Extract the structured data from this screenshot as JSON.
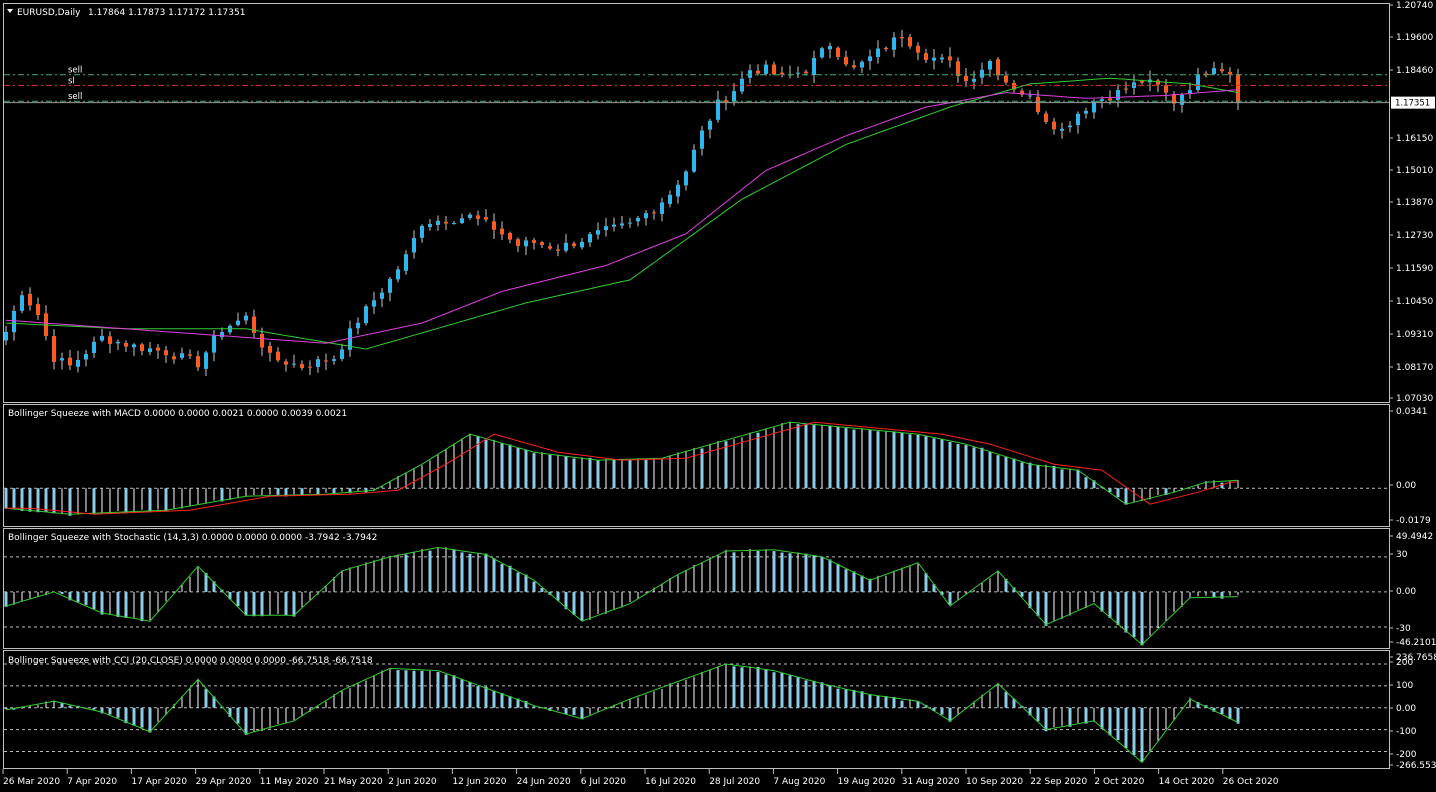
{
  "header": {
    "symbol_label": "EURUSD,Daily",
    "ohlc": "1.17864 1.17873 1.17172 1.17351"
  },
  "colors": {
    "background": "#000000",
    "bull": "#2fb5f0",
    "bear": "#ff5a1f",
    "ma_fast": "#e040e0",
    "ma_slow": "#33cc33",
    "level_sell": "#3cb371",
    "level_sl": "#e03030",
    "histogram": "#87ceeb",
    "signal_red": "#ff2020",
    "signal_green": "#33cc33"
  },
  "levels": [
    {
      "label": "sell",
      "price": 1.1832,
      "color": "#3cb371"
    },
    {
      "label": "sl",
      "price": 1.1795,
      "color": "#e03030"
    },
    {
      "label": "sell",
      "price": 1.174,
      "color": "#3cb371"
    }
  ],
  "price_axis": {
    "ticks": [
      "1.20740",
      "1.19600",
      "1.18460",
      "1.17351",
      "1.16150",
      "1.15010",
      "1.13870",
      "1.12730",
      "1.11590",
      "1.10450",
      "1.09310",
      "1.08170",
      "1.07030"
    ],
    "current_price": "1.17351"
  },
  "time_axis": {
    "labels": [
      "26 Mar 2020",
      "7 Apr 2020",
      "17 Apr 2020",
      "29 Apr 2020",
      "11 May 2020",
      "21 May 2020",
      "2 Jun 2020",
      "12 Jun 2020",
      "24 Jun 2020",
      "6 Jul 2020",
      "16 Jul 2020",
      "28 Jul 2020",
      "7 Aug 2020",
      "19 Aug 2020",
      "31 Aug 2020",
      "10 Sep 2020",
      "22 Sep 2020",
      "2 Oct 2020",
      "14 Oct 2020",
      "26 Oct 2020"
    ]
  },
  "indicators": [
    {
      "key": "macd",
      "title": "Bollinger Squeeze with MACD 0.0000 0.0000 0.0021 0.0000 0.0039 0.0021",
      "axis_labels": [
        "0.0341",
        "0.00",
        "-0.0179"
      ]
    },
    {
      "key": "stoch",
      "title": "Bollinger Squeeze with Stochastic (14,3,3) 0.0000 0.0000 0.0000 -3.7942 -3.7942",
      "axis_labels": [
        "49.4942",
        "30",
        "0.00",
        "-30",
        "-46.2101"
      ]
    },
    {
      "key": "cci",
      "title": "Bollinger Squeeze with CCI (20,CLOSE) 0.0000 0.0000 0.0000 -66.7518 -66.7518",
      "axis_labels": [
        "236.7658",
        "200",
        "100",
        "0.00",
        "-100",
        "-200",
        "-266.5534"
      ]
    }
  ],
  "chart_data": {
    "type": "candlestick",
    "symbol": "EURUSD",
    "timeframe": "Daily",
    "date_range": [
      "26 Mar 2020",
      "26 Oct 2020"
    ],
    "price_range": [
      1.0703,
      1.2074
    ],
    "close_path": [
      [
        0,
        1.094
      ],
      [
        2,
        1.108
      ],
      [
        4,
        1.1
      ],
      [
        6,
        1.085
      ],
      [
        8,
        1.082
      ],
      [
        12,
        1.092
      ],
      [
        16,
        1.089
      ],
      [
        20,
        1.087
      ],
      [
        24,
        1.083
      ],
      [
        27,
        1.095
      ],
      [
        30,
        1.099
      ],
      [
        33,
        1.085
      ],
      [
        37,
        1.082
      ],
      [
        41,
        1.085
      ],
      [
        44,
        1.098
      ],
      [
        48,
        1.112
      ],
      [
        50,
        1.12
      ],
      [
        52,
        1.132
      ],
      [
        55,
        1.133
      ],
      [
        58,
        1.134
      ],
      [
        61,
        1.13
      ],
      [
        64,
        1.124
      ],
      [
        66,
        1.125
      ],
      [
        69,
        1.123
      ],
      [
        72,
        1.126
      ],
      [
        75,
        1.129
      ],
      [
        78,
        1.131
      ],
      [
        81,
        1.137
      ],
      [
        83,
        1.142
      ],
      [
        85,
        1.15
      ],
      [
        87,
        1.163
      ],
      [
        89,
        1.173
      ],
      [
        91,
        1.178
      ],
      [
        93,
        1.185
      ],
      [
        95,
        1.185
      ],
      [
        97,
        1.182
      ],
      [
        100,
        1.185
      ],
      [
        103,
        1.194
      ],
      [
        106,
        1.185
      ],
      [
        109,
        1.191
      ],
      [
        112,
        1.197
      ],
      [
        115,
        1.19
      ],
      [
        118,
        1.187
      ],
      [
        120,
        1.181
      ],
      [
        123,
        1.188
      ],
      [
        125,
        1.181
      ],
      [
        128,
        1.175
      ],
      [
        130,
        1.168
      ],
      [
        132,
        1.164
      ],
      [
        134,
        1.17
      ],
      [
        136,
        1.174
      ],
      [
        139,
        1.177
      ],
      [
        142,
        1.181
      ],
      [
        144,
        1.179
      ],
      [
        146,
        1.174
      ],
      [
        149,
        1.182
      ],
      [
        151,
        1.187
      ],
      [
        153,
        1.184
      ],
      [
        154,
        1.1735
      ]
    ],
    "ma_fast_path": [
      [
        0,
        1.098
      ],
      [
        20,
        1.094
      ],
      [
        40,
        1.09
      ],
      [
        52,
        1.097
      ],
      [
        62,
        1.108
      ],
      [
        75,
        1.117
      ],
      [
        85,
        1.128
      ],
      [
        95,
        1.15
      ],
      [
        105,
        1.162
      ],
      [
        115,
        1.172
      ],
      [
        125,
        1.177
      ],
      [
        135,
        1.175
      ],
      [
        145,
        1.176
      ],
      [
        154,
        1.178
      ]
    ],
    "ma_slow_path": [
      [
        0,
        1.097
      ],
      [
        15,
        1.095
      ],
      [
        30,
        1.095
      ],
      [
        45,
        1.088
      ],
      [
        55,
        1.096
      ],
      [
        65,
        1.104
      ],
      [
        78,
        1.112
      ],
      [
        92,
        1.14
      ],
      [
        105,
        1.159
      ],
      [
        118,
        1.172
      ],
      [
        128,
        1.18
      ],
      [
        138,
        1.182
      ],
      [
        148,
        1.18
      ],
      [
        154,
        1.177
      ]
    ],
    "subcharts": {
      "macd": {
        "range": [
          -0.0179,
          0.0341
        ],
        "path": [
          [
            0,
            -0.01
          ],
          [
            8,
            -0.013
          ],
          [
            20,
            -0.011
          ],
          [
            30,
            -0.004
          ],
          [
            40,
            -0.003
          ],
          [
            46,
            -0.001
          ],
          [
            52,
            0.012
          ],
          [
            58,
            0.027
          ],
          [
            66,
            0.018
          ],
          [
            74,
            0.014
          ],
          [
            82,
            0.015
          ],
          [
            90,
            0.024
          ],
          [
            98,
            0.033
          ],
          [
            106,
            0.03
          ],
          [
            114,
            0.027
          ],
          [
            120,
            0.022
          ],
          [
            128,
            0.012
          ],
          [
            134,
            0.009
          ],
          [
            140,
            -0.008
          ],
          [
            146,
            -0.002
          ],
          [
            150,
            0.003
          ],
          [
            154,
            0.004
          ]
        ]
      },
      "stoch": {
        "range": [
          -46.2101,
          49.4942
        ],
        "path": [
          [
            0,
            -12
          ],
          [
            6,
            0
          ],
          [
            12,
            -18
          ],
          [
            18,
            -25
          ],
          [
            24,
            22
          ],
          [
            30,
            -20
          ],
          [
            36,
            -20
          ],
          [
            42,
            18
          ],
          [
            48,
            30
          ],
          [
            54,
            38
          ],
          [
            60,
            32
          ],
          [
            66,
            10
          ],
          [
            72,
            -25
          ],
          [
            78,
            -10
          ],
          [
            84,
            15
          ],
          [
            90,
            35
          ],
          [
            96,
            36
          ],
          [
            102,
            30
          ],
          [
            108,
            10
          ],
          [
            114,
            25
          ],
          [
            118,
            -12
          ],
          [
            124,
            18
          ],
          [
            130,
            -28
          ],
          [
            136,
            -10
          ],
          [
            142,
            -45
          ],
          [
            148,
            -5
          ],
          [
            154,
            -4
          ]
        ]
      },
      "cci": {
        "range": [
          -266.5534,
          236.7658
        ],
        "path": [
          [
            0,
            -10
          ],
          [
            6,
            30
          ],
          [
            12,
            -20
          ],
          [
            18,
            -110
          ],
          [
            24,
            130
          ],
          [
            30,
            -120
          ],
          [
            36,
            -60
          ],
          [
            42,
            80
          ],
          [
            48,
            180
          ],
          [
            54,
            170
          ],
          [
            60,
            90
          ],
          [
            66,
            10
          ],
          [
            72,
            -50
          ],
          [
            78,
            40
          ],
          [
            84,
            120
          ],
          [
            90,
            200
          ],
          [
            96,
            170
          ],
          [
            102,
            110
          ],
          [
            108,
            60
          ],
          [
            114,
            30
          ],
          [
            118,
            -60
          ],
          [
            124,
            110
          ],
          [
            130,
            -100
          ],
          [
            136,
            -60
          ],
          [
            142,
            -250
          ],
          [
            148,
            40
          ],
          [
            154,
            -67
          ]
        ]
      }
    }
  }
}
